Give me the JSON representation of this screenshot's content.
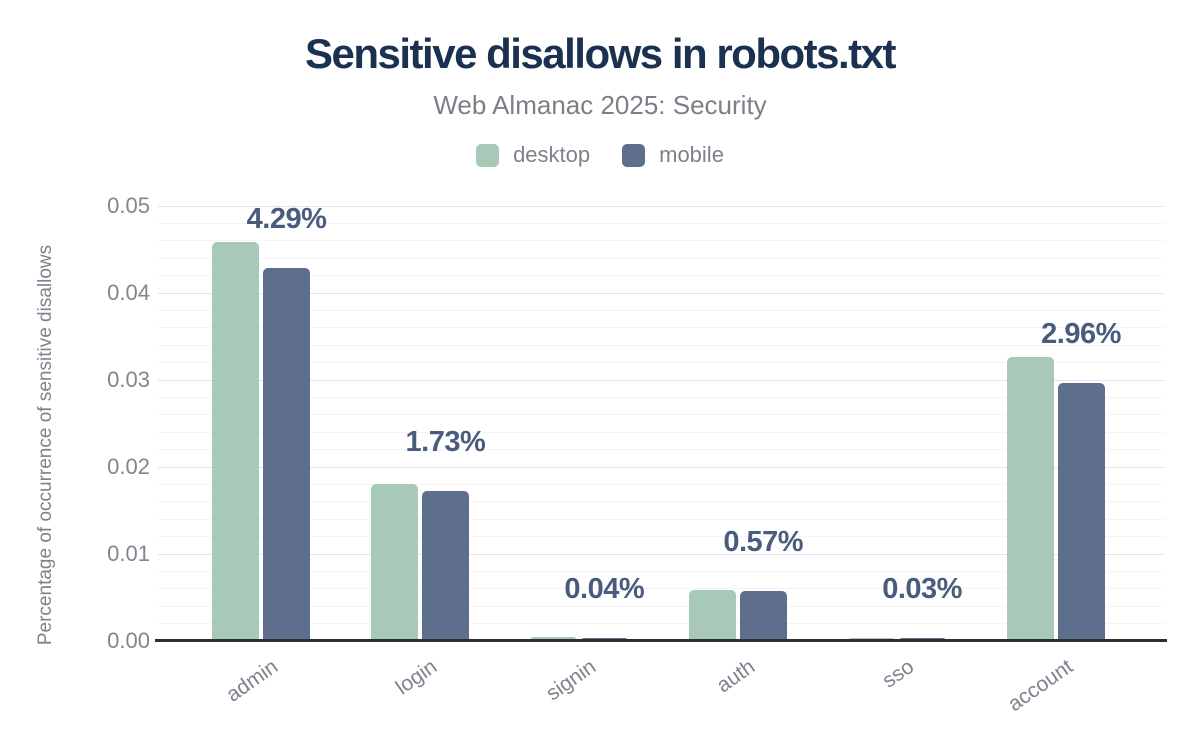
{
  "title": "Sensitive disallows in robots.txt",
  "subtitle": "Web Almanac 2025: Security",
  "legend": {
    "items": [
      {
        "label": "desktop",
        "color": "#a8c9b7"
      },
      {
        "label": "mobile",
        "color": "#5d6f8c"
      }
    ]
  },
  "colors": {
    "title_text": "#1b3150",
    "subtitle_text": "#7b8087",
    "axis_text": "#81868e",
    "value_label_text": "#4a5c7e",
    "major_gridline": "#e3e4e7",
    "minor_gridline": "#f3f4f5",
    "axis_line": "#2e2e2e",
    "background": "#ffffff"
  },
  "chart_data": {
    "type": "bar",
    "title": "Sensitive disallows in robots.txt",
    "subtitle": "Web Almanac 2025: Security",
    "categories": [
      "admin",
      "login",
      "signin",
      "auth",
      "sso",
      "account"
    ],
    "series": [
      {
        "name": "desktop",
        "color": "#a8c9b7",
        "values": [
          0.0459,
          0.0181,
          0.0005,
          0.0059,
          0.0003,
          0.0327
        ]
      },
      {
        "name": "mobile",
        "color": "#5d6f8c",
        "values": [
          0.0429,
          0.0173,
          0.0004,
          0.0057,
          0.0003,
          0.0296
        ]
      }
    ],
    "annotations": [
      "4.29%",
      "1.73%",
      "0.04%",
      "0.57%",
      "0.03%",
      "2.96%"
    ],
    "annotation_anchor_series": "mobile",
    "xlabel": "",
    "ylabel": "Percentage of occurrence of sensitive disallows",
    "ylim": [
      0,
      0.05
    ],
    "yticks": [
      0,
      0.01,
      0.02,
      0.03,
      0.04,
      0.05
    ],
    "ytick_labels": [
      "0.00",
      "0.01",
      "0.02",
      "0.03",
      "0.04",
      "0.05"
    ],
    "minor_grid_step": 0.002,
    "grid": true,
    "legend_position": "top"
  }
}
